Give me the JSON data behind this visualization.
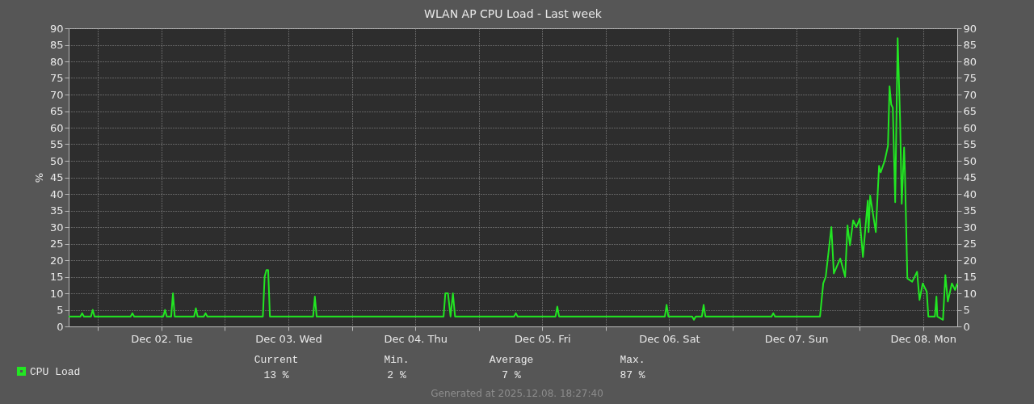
{
  "chart_data": {
    "type": "line",
    "title": "WLAN AP CPU Load - Last week",
    "ylabel": "%",
    "xlim": [
      "2025-12-01T18:27",
      "2025-12-08T18:27"
    ],
    "xticks": [
      {
        "value": "2025-12-02T00:00",
        "label": null
      },
      {
        "value": "2025-12-02T12:00",
        "label": "Dec 02. Tue"
      },
      {
        "value": "2025-12-03T00:00",
        "label": null
      },
      {
        "value": "2025-12-03T12:00",
        "label": "Dec 03. Wed"
      },
      {
        "value": "2025-12-04T00:00",
        "label": null
      },
      {
        "value": "2025-12-04T12:00",
        "label": "Dec 04. Thu"
      },
      {
        "value": "2025-12-05T00:00",
        "label": null
      },
      {
        "value": "2025-12-05T12:00",
        "label": "Dec 05. Fri"
      },
      {
        "value": "2025-12-06T00:00",
        "label": null
      },
      {
        "value": "2025-12-06T12:00",
        "label": "Dec 06. Sat"
      },
      {
        "value": "2025-12-07T00:00",
        "label": null
      },
      {
        "value": "2025-12-07T12:00",
        "label": "Dec 07. Sun"
      },
      {
        "value": "2025-12-08T00:00",
        "label": null
      },
      {
        "value": "2025-12-08T12:00",
        "label": "Dec 08. Mon"
      }
    ],
    "ylim": [
      0,
      90
    ],
    "yticks": [
      0,
      5,
      10,
      15,
      20,
      25,
      30,
      35,
      40,
      45,
      50,
      55,
      60,
      65,
      70,
      75,
      80,
      85,
      90
    ],
    "y2lim": [
      0,
      90
    ],
    "y2ticks": [
      0,
      5,
      10,
      15,
      20,
      25,
      30,
      35,
      40,
      45,
      50,
      55,
      60,
      65,
      70,
      75,
      80,
      85,
      90
    ],
    "grid": true,
    "legend": "bottom left",
    "series": [
      {
        "name": "CPU Load",
        "color": "#22e622",
        "x": [
          "2025-12-01T18:27",
          "2025-12-01T20:40",
          "2025-12-01T21:00",
          "2025-12-01T21:20",
          "2025-12-01T22:40",
          "2025-12-01T23:00",
          "2025-12-01T23:20",
          "2025-12-02T06:10",
          "2025-12-02T06:30",
          "2025-12-02T06:50",
          "2025-12-02T12:20",
          "2025-12-02T12:40",
          "2025-12-02T13:00",
          "2025-12-02T13:50",
          "2025-12-02T14:10",
          "2025-12-02T14:30",
          "2025-12-02T18:10",
          "2025-12-02T18:30",
          "2025-12-02T18:50",
          "2025-12-02T20:00",
          "2025-12-02T20:20",
          "2025-12-02T20:40",
          "2025-12-03T07:10",
          "2025-12-03T07:30",
          "2025-12-03T07:50",
          "2025-12-03T08:10",
          "2025-12-03T08:30",
          "2025-12-03T16:40",
          "2025-12-03T17:00",
          "2025-12-03T17:20",
          "2025-12-04T17:20",
          "2025-12-04T17:40",
          "2025-12-04T18:10",
          "2025-12-04T18:39",
          "2025-12-04T19:06",
          "2025-12-04T19:30",
          "2025-12-05T06:40",
          "2025-12-05T07:00",
          "2025-12-05T07:20",
          "2025-12-05T14:30",
          "2025-12-05T14:50",
          "2025-12-05T15:10",
          "2025-12-06T11:10",
          "2025-12-06T11:30",
          "2025-12-06T11:50",
          "2025-12-06T16:20",
          "2025-12-06T16:40",
          "2025-12-06T17:00",
          "2025-12-06T18:10",
          "2025-12-06T18:30",
          "2025-12-06T18:50",
          "2025-12-07T07:20",
          "2025-12-07T07:40",
          "2025-12-07T08:00",
          "2025-12-07T16:30",
          "2025-12-07T17:07",
          "2025-12-07T17:35",
          "2025-12-07T18:39",
          "2025-12-07T19:07",
          "2025-12-07T20:20",
          "2025-12-07T21:15",
          "2025-12-07T21:42",
          "2025-12-07T22:10",
          "2025-12-07T22:46",
          "2025-12-07T23:23",
          "2025-12-08T00:00",
          "2025-12-08T00:37",
          "2025-12-08T01:32",
          "2025-12-08T01:41",
          "2025-12-08T01:59",
          "2025-12-08T03:03",
          "2025-12-08T03:40",
          "2025-12-08T03:58",
          "2025-12-08T04:44",
          "2025-12-08T05:21",
          "2025-12-08T05:39",
          "2025-12-08T05:58",
          "2025-12-08T06:16",
          "2025-12-08T06:43",
          "2025-12-08T07:11",
          "2025-12-08T07:38",
          "2025-12-08T07:57",
          "2025-12-08T08:24",
          "2025-12-08T08:33",
          "2025-12-08T09:01",
          "2025-12-08T09:56",
          "2025-12-08T10:51",
          "2025-12-08T11:19",
          "2025-12-08T11:55",
          "2025-12-08T12:41",
          "2025-12-08T12:59",
          "2025-12-08T14:13",
          "2025-12-08T14:31",
          "2025-12-08T14:41",
          "2025-12-08T15:45",
          "2025-12-08T16:12",
          "2025-12-08T16:40",
          "2025-12-08T17:26",
          "2025-12-08T18:02",
          "2025-12-08T18:27"
        ],
        "values": [
          3,
          3,
          4,
          3,
          3,
          5,
          3,
          3,
          4,
          3,
          3,
          5,
          3,
          3,
          10,
          3,
          3,
          5.5,
          3,
          3,
          4,
          3,
          3,
          15,
          17,
          17,
          3,
          3,
          9,
          3,
          3,
          10,
          10,
          3,
          10,
          3,
          3,
          4,
          3,
          3,
          6,
          3,
          3,
          6.5,
          3,
          3,
          2,
          3,
          3,
          6.5,
          3,
          3,
          4,
          3,
          3,
          13,
          15,
          30,
          16,
          20.5,
          15,
          30.5,
          24.5,
          32,
          30,
          32.5,
          21,
          38,
          28.5,
          39.5,
          28.5,
          48.5,
          46.5,
          50,
          54.5,
          72.5,
          67,
          66,
          37.5,
          87,
          63,
          37,
          54,
          47,
          14.5,
          13.5,
          16.5,
          8,
          13,
          10.5,
          3,
          3,
          9,
          3,
          2,
          15.5,
          7.5,
          13,
          11,
          13
        ]
      }
    ],
    "annotations": [
      "Current",
      "Min.",
      "Average",
      "Max.",
      "13 %",
      "2 %",
      "7 %",
      "87 %",
      "Generated at 2025.12.08. 18:27:40"
    ]
  }
}
